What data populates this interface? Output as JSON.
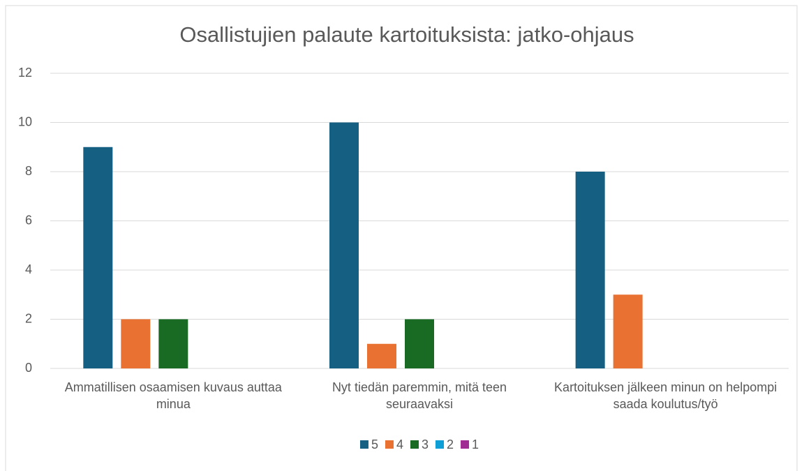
{
  "chart_data": {
    "type": "bar",
    "title": "Osallistujien palaute kartoituksista: jatko-ohjaus",
    "categories": [
      "Ammatillisen osaamisen kuvaus auttaa minua",
      "Nyt tiedän paremmin, mitä teen seuraavaksi",
      "Kartoituksen jälkeen minun on helpompi saada koulutus/työ"
    ],
    "series": [
      {
        "name": "5",
        "color": "#156082",
        "values": [
          9,
          10,
          8
        ]
      },
      {
        "name": "4",
        "color": "#e97132",
        "values": [
          2,
          1,
          3
        ]
      },
      {
        "name": "3",
        "color": "#196b24",
        "values": [
          2,
          2,
          0
        ]
      },
      {
        "name": "2",
        "color": "#0f9ed5",
        "values": [
          0,
          0,
          0
        ]
      },
      {
        "name": "1",
        "color": "#a02b93",
        "values": [
          0,
          0,
          0
        ]
      }
    ],
    "ylim": [
      0,
      12
    ],
    "yticks": [
      0,
      2,
      4,
      6,
      8,
      10,
      12
    ],
    "grid": true,
    "legend": "bottom"
  }
}
